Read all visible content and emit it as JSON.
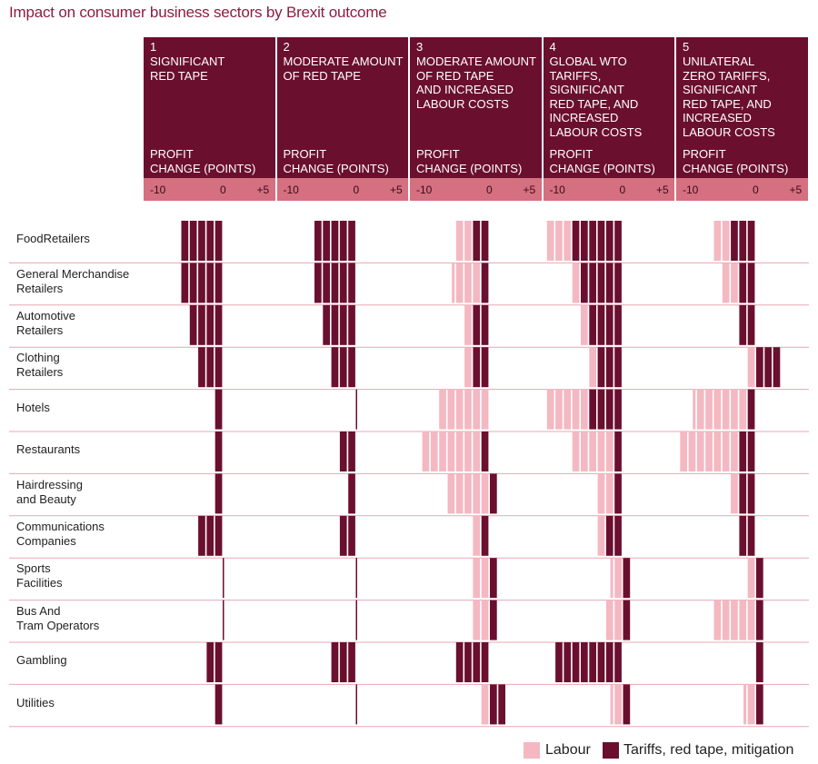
{
  "chart_data": {
    "type": "bar",
    "title": "Impact on consumer business sectors by Brexit outcome",
    "axis_header": "PROFIT\nCHANGE (POINTS)",
    "xlim": [
      -10,
      5
    ],
    "ticks": [
      "-10",
      "0",
      "+5"
    ],
    "colors": {
      "labour": "#f4b8c2",
      "tariffs": "#6b0f2f",
      "header": "#6b0f2f",
      "axis_band": "#d4707f",
      "divider": "#e8a7b4",
      "title": "#8c1d40"
    },
    "legend": [
      {
        "key": "labour",
        "label": "Labour"
      },
      {
        "key": "tariffs",
        "label": "Tariffs, red tape, mitigation"
      }
    ],
    "scenarios": [
      {
        "number": "1",
        "name": "SIGNIFICANT\nRED TAPE"
      },
      {
        "number": "2",
        "name": "MODERATE AMOUNT\nOF RED TAPE"
      },
      {
        "number": "3",
        "name": "MODERATE AMOUNT\nOF RED TAPE\nAND INCREASED\nLABOUR COSTS"
      },
      {
        "number": "4",
        "name": "GLOBAL WTO\nTARIFFS,\nSIGNIFICANT\nRED TAPE, AND\nINCREASED\nLABOUR COSTS"
      },
      {
        "number": "5",
        "name": "UNILATERAL\nZERO TARIFFS,\nSIGNIFICANT\nRED TAPE, AND\nINCREASED\nLABOUR COSTS"
      }
    ],
    "sectors": [
      "FoodRetailers",
      "General Merchandise\nRetailers",
      "Automotive\nRetailers",
      "Clothing\nRetailers",
      "Hotels",
      "Restaurants",
      "Hairdressing\nand Beauty",
      "Communications\nCompanies",
      "Sports\nFacilities",
      "Bus And\nTram Operators",
      "Gambling",
      "Utilities"
    ],
    "series": [
      {
        "name": "Labour",
        "values": [
          [
            0,
            0,
            -2,
            -3,
            -2
          ],
          [
            0,
            0,
            -3.5,
            -1,
            -2
          ],
          [
            0,
            0,
            -1,
            -1,
            0
          ],
          [
            0,
            0,
            -1,
            -1,
            -1
          ],
          [
            0,
            0,
            -6,
            -5,
            -6.5
          ],
          [
            0,
            0,
            -7,
            -5,
            -7
          ],
          [
            0,
            0,
            -5,
            -2,
            -1
          ],
          [
            0,
            0,
            -1,
            -1,
            0
          ],
          [
            0,
            0,
            -2,
            -1.5,
            -1
          ],
          [
            0,
            0,
            -2,
            -2,
            -5
          ],
          [
            0,
            0,
            0,
            0,
            0
          ],
          [
            0,
            0,
            -1,
            -1.5,
            -1.5
          ]
        ]
      },
      {
        "name": "Tariffs, red tape, mitigation",
        "values": [
          [
            -5,
            -5,
            -2,
            -6,
            -3
          ],
          [
            -5,
            -5,
            -1,
            -5,
            -2
          ],
          [
            -4,
            -4,
            -2,
            -4,
            -2
          ],
          [
            -3,
            -3,
            -2,
            -3,
            3
          ],
          [
            -1,
            0,
            0,
            -4,
            -1
          ],
          [
            -1,
            -2,
            -1,
            -1,
            -2
          ],
          [
            -1,
            -1,
            1,
            -1,
            -2
          ],
          [
            -3,
            -2,
            -1,
            -2,
            -2
          ],
          [
            0,
            0,
            1,
            1,
            1
          ],
          [
            0,
            0,
            1,
            1,
            1
          ],
          [
            -2,
            -3,
            -4,
            -8,
            1
          ],
          [
            -1,
            0,
            2,
            1,
            1
          ]
        ]
      }
    ]
  }
}
